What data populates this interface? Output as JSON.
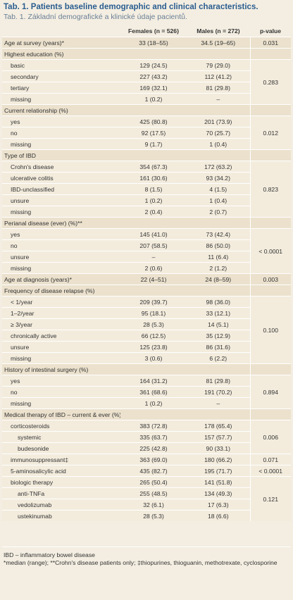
{
  "header": {
    "title": "Tab. 1. Patients baseline demographic and clinical characteristics.",
    "subtitle": "Tab. 1. Základní demografické a klinické údaje pacientů."
  },
  "table": {
    "columns": [
      "Females (n = 526)",
      "Males (n = 272)",
      "p-value"
    ],
    "groups": [
      {
        "label": "Age at survey (years)*",
        "females": "33 (18–55)",
        "males": "34.5 (19–65)",
        "p_value": "0.031"
      },
      {
        "label": "Highest education (%)",
        "p_value": "0.283",
        "items": [
          {
            "label": "basic",
            "females": "129 (24.5)",
            "males": "79 (29.0)"
          },
          {
            "label": "secondary",
            "females": "227 (43.2)",
            "males": "112 (41.2)"
          },
          {
            "label": "tertiary",
            "females": "169 (32.1)",
            "males": "81 (29.8)"
          },
          {
            "label": "missing",
            "females": "1 (0.2)",
            "males": "–"
          }
        ]
      },
      {
        "label": "Current relationship (%)",
        "p_value": "0.012",
        "items": [
          {
            "label": "yes",
            "females": "425 (80.8)",
            "males": "201 (73.9)"
          },
          {
            "label": "no",
            "females": "92 (17.5)",
            "males": "70 (25.7)"
          },
          {
            "label": "missing",
            "females": "9 (1.7)",
            "males": "1 (0.4)"
          }
        ]
      },
      {
        "label": "Type of IBD",
        "p_value": "0.823",
        "items": [
          {
            "label": "Crohn's disease",
            "females": "354 (67.3)",
            "males": "172 (63.2)"
          },
          {
            "label": "ulcerative colitis",
            "females": "161 (30.6)",
            "males": "93 (34.2)"
          },
          {
            "label": "IBD-unclassified",
            "females": "8 (1.5)",
            "males": "4 (1.5)"
          },
          {
            "label": "unsure",
            "females": "1 (0.2)",
            "males": "1 (0.4)"
          },
          {
            "label": "missing",
            "females": "2 (0.4)",
            "males": "2 (0.7)"
          }
        ]
      },
      {
        "label": "Perianal disease (ever) (%)**",
        "p_value": "< 0.0001",
        "items": [
          {
            "label": "yes",
            "females": "145 (41.0)",
            "males": "73 (42.4)"
          },
          {
            "label": "no",
            "females": "207 (58.5)",
            "males": "86 (50.0)"
          },
          {
            "label": "unsure",
            "females": "–",
            "males": "11 (6.4)"
          },
          {
            "label": "missing",
            "females": "2 (0.6)",
            "males": "2 (1.2)"
          }
        ]
      },
      {
        "label": "Age at diagnosis (years)*",
        "females": "22 (4–51)",
        "males": "24 (8–59)",
        "p_value": "0.003"
      },
      {
        "label": "Frequency of disease relapse (%)",
        "p_value": "0.100",
        "items": [
          {
            "label": "< 1/year",
            "females": "209 (39.7)",
            "males": "98 (36.0)"
          },
          {
            "label": "1–2/year",
            "females": "95 (18.1)",
            "males": "33 (12.1)"
          },
          {
            "label": "≥ 3/year",
            "females": "28 (5.3)",
            "males": "14 (5.1)"
          },
          {
            "label": "chronically active",
            "females": "66 (12.5)",
            "males": "35 (12.9)"
          },
          {
            "label": "unsure",
            "females": "125 (23.8)",
            "males": "86 (31.6)"
          },
          {
            "label": "missing",
            "females": "3 (0.6)",
            "males": "6 (2.2)"
          }
        ]
      },
      {
        "label": "History of intestinal surgery (%)",
        "p_value": "0.894",
        "items": [
          {
            "label": "yes",
            "females": "164 (31.2)",
            "males": "81 (29.8)"
          },
          {
            "label": "no",
            "females": "361 (68.6)",
            "males": "191 (70.2)"
          },
          {
            "label": "missing",
            "females": "1 (0.2)",
            "males": "–"
          }
        ]
      },
      {
        "label": "Medical therapy of IBD – current & ever (%)",
        "items": [
          {
            "label": "corticosteroids",
            "females": "383 (72.8)",
            "males": "178 (65.4)",
            "p_value": "0.006",
            "items": [
              {
                "label": "systemic",
                "females": "335 (63.7)",
                "males": "157 (57.7)"
              },
              {
                "label": "budesonide",
                "females": "225 (42.8)",
                "males": "90 (33.1)"
              }
            ]
          },
          {
            "label": "immunosuppressant‡",
            "females": "363 (69.0)",
            "males": "180 (66.2)",
            "p_value": "0.071"
          },
          {
            "label": "5-aminosalicylic acid",
            "females": "435 (82.7)",
            "males": "195 (71.7)",
            "p_value": "< 0.0001"
          },
          {
            "label": "biologic therapy",
            "females": "265 (50.4)",
            "males": "141 (51.8)",
            "p_value": "0.121",
            "items": [
              {
                "label": "anti-TNFa",
                "females": "255 (48.5)",
                "males": "134 (49.3)"
              },
              {
                "label": "vedolizumab",
                "females": "32 (6.1)",
                "males": "17 (6.3)"
              },
              {
                "label": "ustekinumab",
                "females": "28 (5.3)",
                "males": "18 (6.6)"
              }
            ]
          }
        ]
      }
    ]
  },
  "footnotes": [
    "IBD – inflammatory bowel disease",
    "*median (range); **Crohn's disease patients only; ‡thiopurines, thioguanin, methotrexate, cyclosporine"
  ]
}
